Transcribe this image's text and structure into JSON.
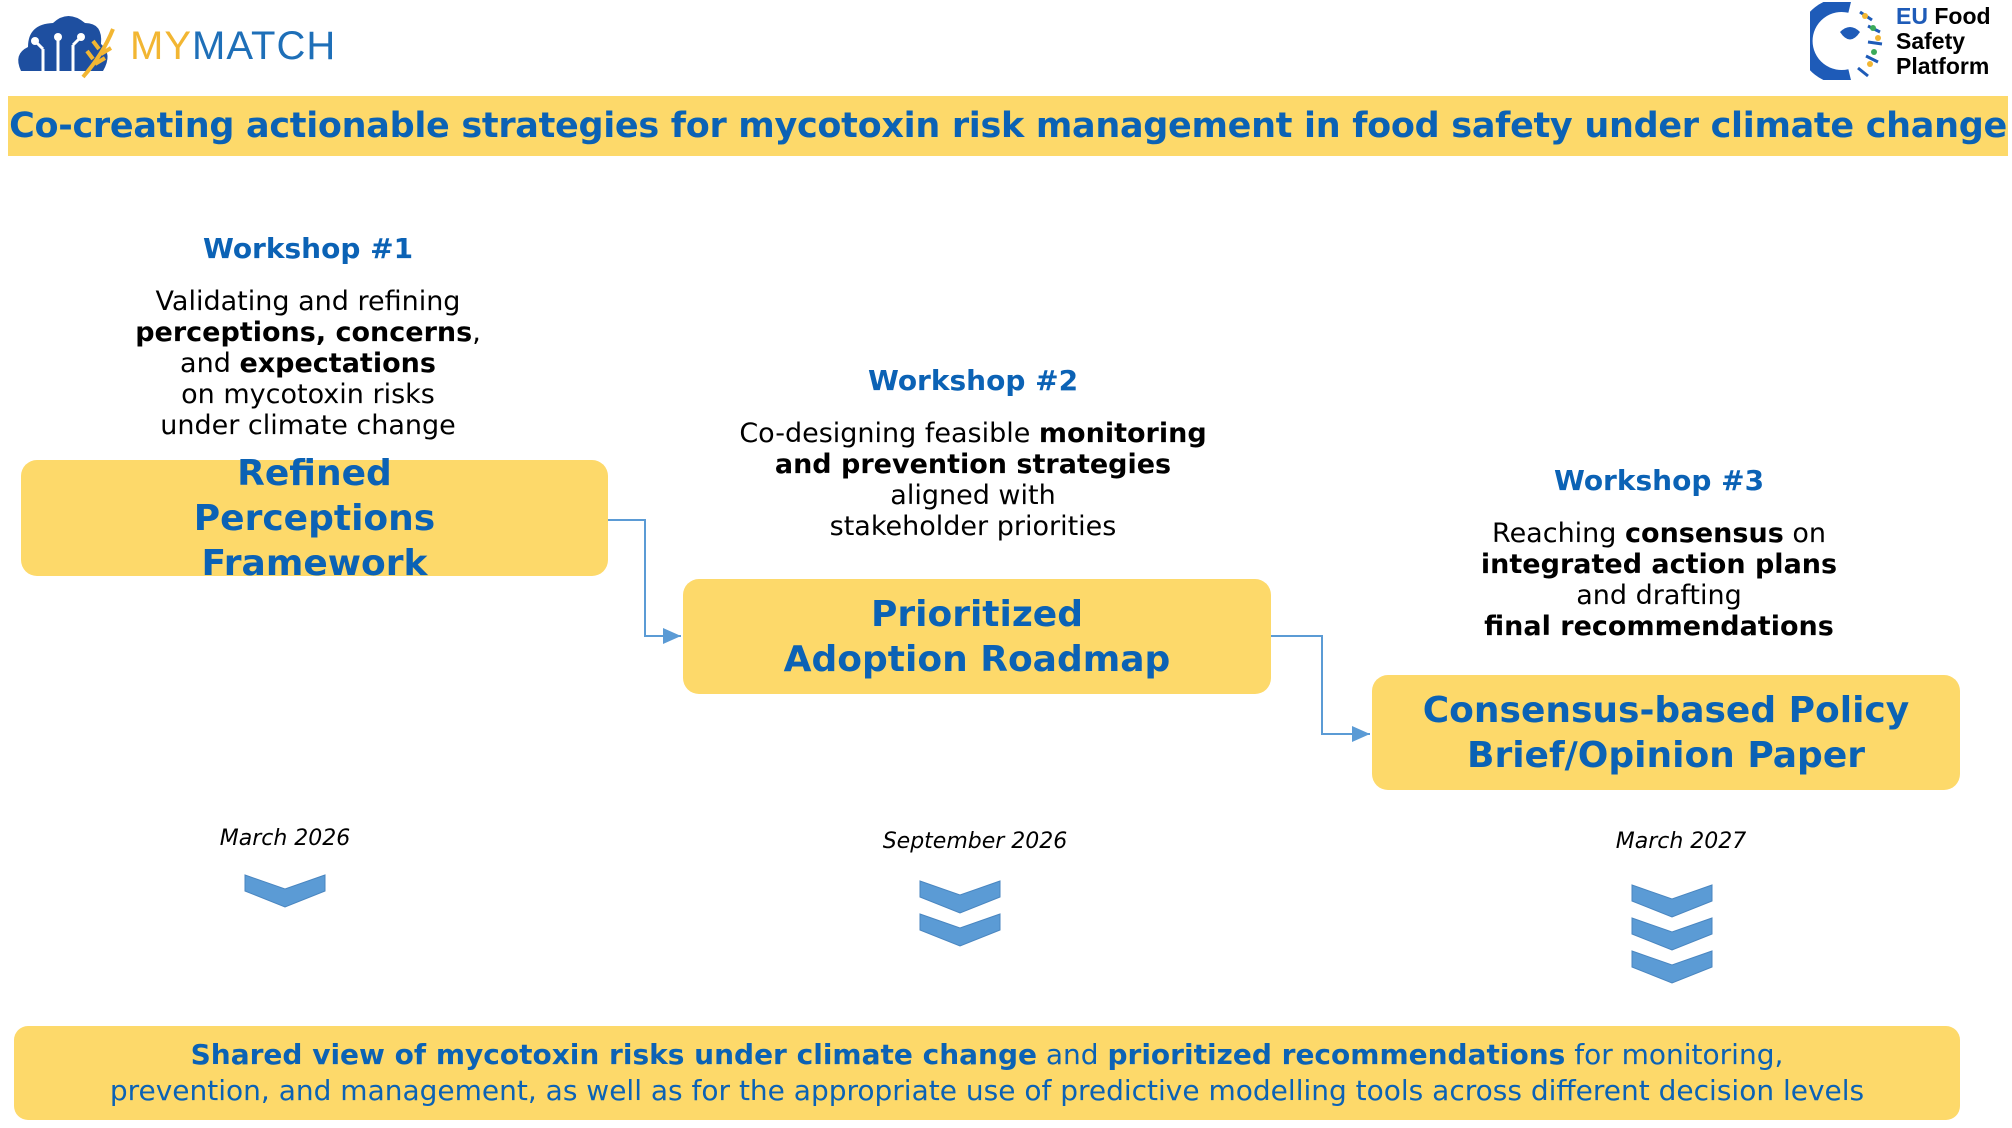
{
  "header": {
    "logo": {
      "part1": "MY",
      "part2": "MATCH"
    },
    "partner_logo": {
      "line1_accent": "EU",
      "line1_rest": " Food",
      "line2": "Safety",
      "line3": "Platform"
    },
    "title": "Co-creating actionable strategies for mycotoxin risk management in food safety under climate change"
  },
  "workshops": [
    {
      "title": "Workshop #1",
      "description": [
        {
          "text": "Validating and refining",
          "bold": false,
          "br": true
        },
        {
          "text": "perceptions, concerns",
          "bold": true
        },
        {
          "text": ",",
          "bold": false,
          "br": true
        },
        {
          "text": "and ",
          "bold": false
        },
        {
          "text": "expectations",
          "bold": true,
          "br": true
        },
        {
          "text": "on mycotoxin risks",
          "bold": false,
          "br": true
        },
        {
          "text": "under climate change",
          "bold": false
        }
      ],
      "output": "Refined Perceptions Framework",
      "date": "March 2026",
      "chevrons": 1
    },
    {
      "title": "Workshop #2",
      "description": [
        {
          "text": "Co-designing feasible ",
          "bold": false
        },
        {
          "text": "monitoring",
          "bold": true,
          "br": true
        },
        {
          "text": "and prevention strategies",
          "bold": true,
          "br": true
        },
        {
          "text": "aligned with",
          "bold": false,
          "br": true
        },
        {
          "text": "stakeholder priorities",
          "bold": false
        }
      ],
      "output": "Prioritized Adoption Roadmap",
      "date": "September 2026",
      "chevrons": 2
    },
    {
      "title": "Workshop #3",
      "description": [
        {
          "text": "Reaching ",
          "bold": false
        },
        {
          "text": "consensus",
          "bold": true
        },
        {
          "text": " on",
          "bold": false,
          "br": true
        },
        {
          "text": "integrated action plans",
          "bold": true,
          "br": true
        },
        {
          "text": "and drafting",
          "bold": false,
          "br": true
        },
        {
          "text": "final recommendations",
          "bold": true
        }
      ],
      "output": "Consensus-based Policy Brief/Opinion Paper",
      "date": "March 2027",
      "chevrons": 3
    }
  ],
  "outcome": [
    {
      "text": "Shared view of mycotoxin risks under climate change",
      "bold": true
    },
    {
      "text": " and ",
      "bold": false
    },
    {
      "text": "prioritized recommendations",
      "bold": true
    },
    {
      "text": " for monitoring, prevention, and management, as well as for the appropriate use of predictive modelling tools across different decision levels",
      "bold": false
    }
  ],
  "colors": {
    "accent_yellow": "#FDD96A",
    "text_blue": "#0B62B5",
    "chevron_blue": "#5B9BD5"
  }
}
